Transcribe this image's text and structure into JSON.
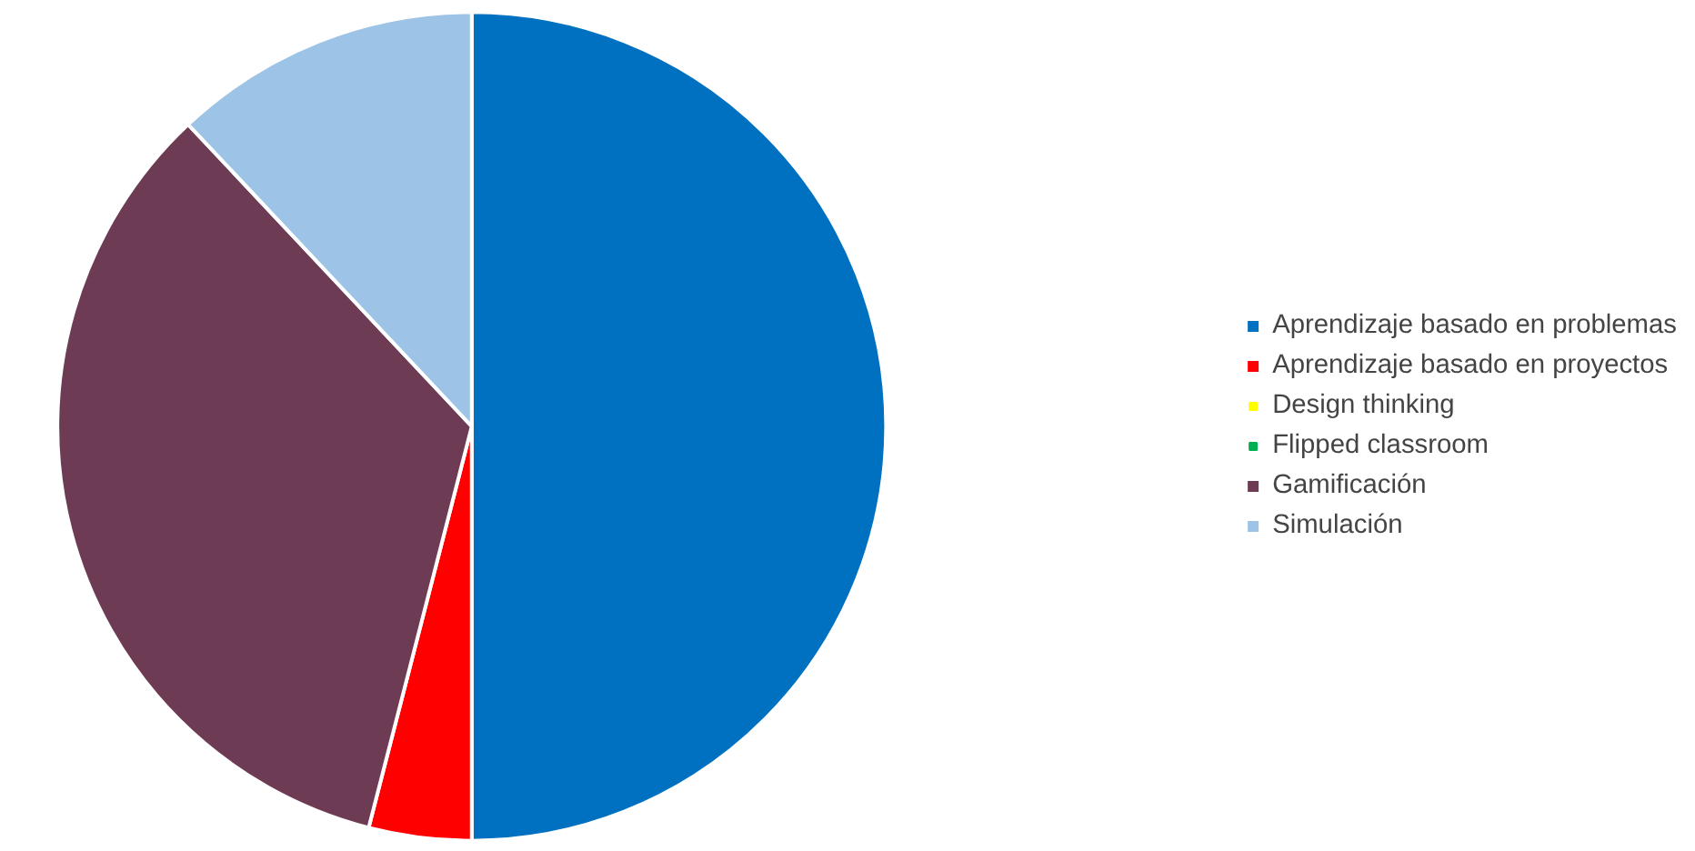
{
  "chart_data": {
    "type": "pie",
    "categories": [
      "Aprendizaje basado en problemas",
      "Aprendizaje basado en proyectos",
      "Design thinking",
      "Flipped classroom",
      "Gamificación",
      "Simulación"
    ],
    "values": [
      50,
      4,
      0,
      0,
      34,
      12
    ],
    "colors": [
      "#0070c0",
      "#ff0000",
      "#ffff00",
      "#00b050",
      "#6e3b54",
      "#9dc3e6"
    ],
    "legend": "right"
  }
}
